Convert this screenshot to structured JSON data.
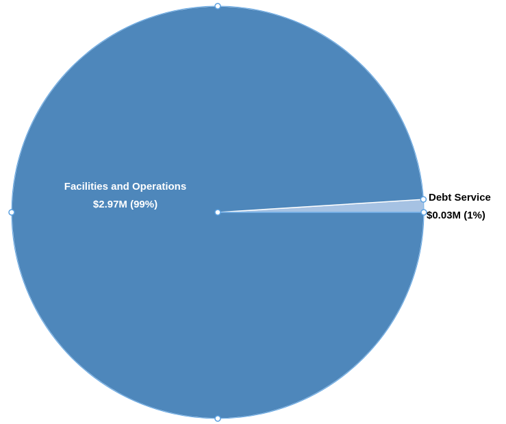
{
  "chart_data": {
    "type": "pie",
    "slices": [
      {
        "label": "Facilities and Operations",
        "value_label": "$2.97M (99%)",
        "value": 2.97,
        "percent": 99,
        "color": "#4e87bb",
        "label_color": "#ffffff"
      },
      {
        "label": "Debt Service",
        "value_label": "$0.03M (1%)",
        "value": 0.03,
        "percent": 1,
        "color": "#a6c2e3",
        "label_color": "#000000"
      }
    ],
    "selected": true,
    "handle_color": "#5aa0e0",
    "outline_color": "#ffffff"
  }
}
